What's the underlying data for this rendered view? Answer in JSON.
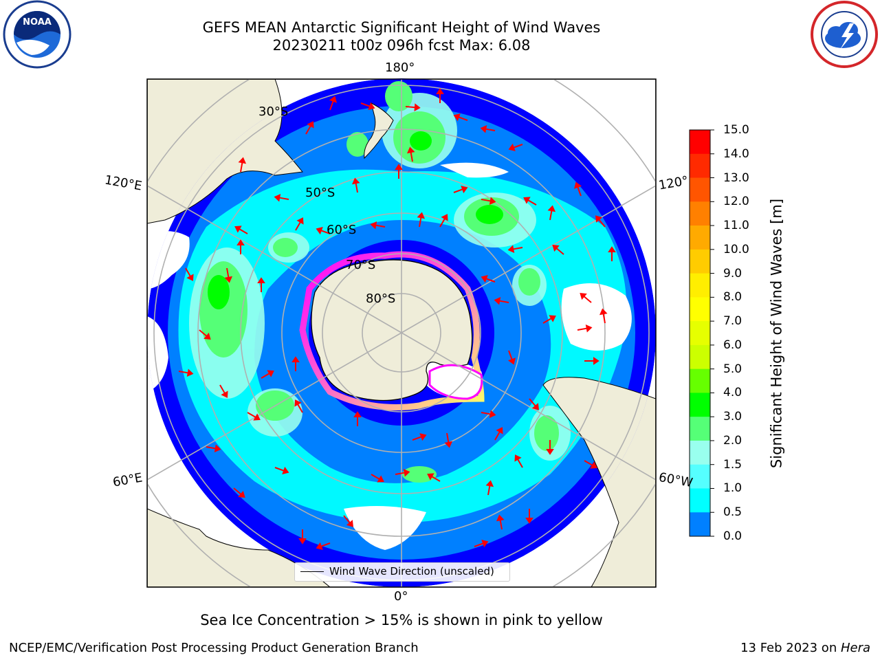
{
  "title": {
    "line1": "GEFS MEAN Antarctic Significant Height of Wind Waves",
    "line2": "20230211 t00z 096h fcst   Max: 6.08"
  },
  "logos": {
    "left": "NOAA",
    "right": "NATIONAL WEATHER SERVICE"
  },
  "map": {
    "projection": "south-polar-stereographic",
    "longitude_labels": {
      "top": "180°",
      "bottom": "0°",
      "upper_left": "120°E",
      "upper_right": "120°",
      "lower_left": "60°E",
      "lower_right": "60°W"
    },
    "latitude_labels": [
      "30°S",
      "50°S",
      "60°S",
      "70°S",
      "80°S"
    ],
    "colors": {
      "land": "#efedd9",
      "ice_low": "#ff00ff",
      "ice_high": "#ffff66",
      "arrow": "#ff0000",
      "grid": "#b0b0b0"
    },
    "legend": {
      "label": "Wind Wave Direction (unscaled)"
    }
  },
  "colorbar": {
    "label": "Significant Height of Wind Waves [m]",
    "ticks": [
      "15.0",
      "14.0",
      "13.0",
      "12.0",
      "11.0",
      "10.0",
      "9.0",
      "8.0",
      "7.0",
      "6.0",
      "5.0",
      "4.0",
      "3.0",
      "2.0",
      "1.5",
      "1.0",
      "0.5",
      "0.0"
    ],
    "colors_top_to_bottom": [
      "#ff0000",
      "#ff2a00",
      "#ff5500",
      "#ff8000",
      "#ffaa00",
      "#ffcc00",
      "#ffee00",
      "#ffff00",
      "#e6ff00",
      "#ccff00",
      "#66ff00",
      "#00ff00",
      "#55ff77",
      "#99ffee",
      "#55ffff",
      "#00ffff",
      "#0080ff",
      "#0000ff"
    ]
  },
  "bottom_note": "Sea Ice Concentration > 15% is shown in pink to yellow",
  "footer": {
    "left": "NCEP/EMC/Verification Post Processing Product Generation Branch",
    "right_date": "13 Feb 2023 on ",
    "right_host": "Hera"
  }
}
